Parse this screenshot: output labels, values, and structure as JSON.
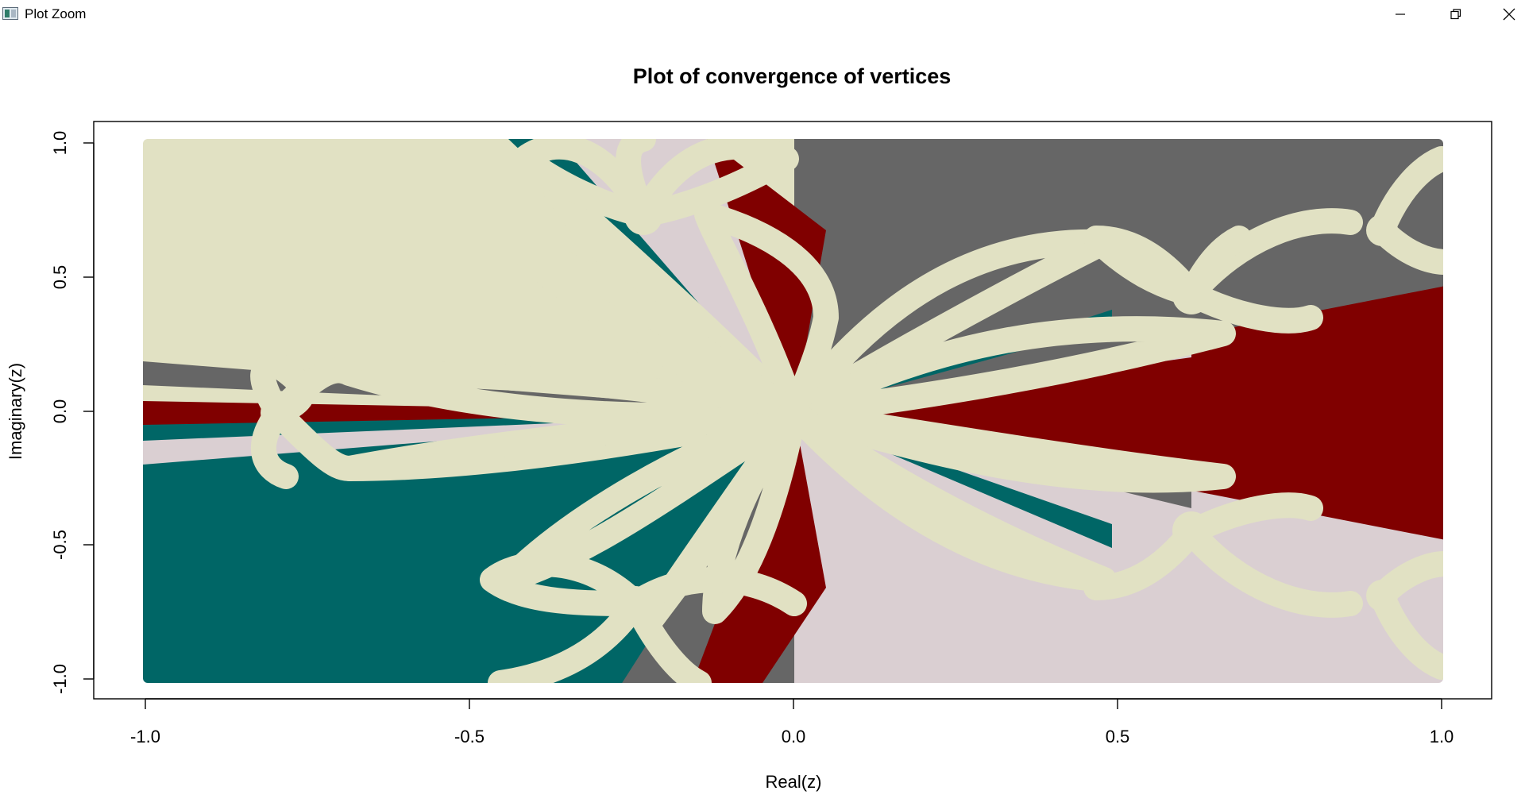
{
  "window": {
    "title": "Plot Zoom",
    "icons": [
      "app-icon",
      "minimize-icon",
      "restore-icon",
      "close-icon"
    ]
  },
  "chart_data": {
    "type": "heatmap",
    "title": "Plot of convergence of vertices",
    "xlabel": "Real(z)",
    "ylabel": "Imaginary(z)",
    "xlim": [
      -1.0,
      1.0
    ],
    "ylim": [
      -1.0,
      1.0
    ],
    "x_ticks": [
      "-1.0",
      "-0.5",
      "0.0",
      "0.5",
      "1.0"
    ],
    "y_ticks": [
      "-1.0",
      "-0.5",
      "0.0",
      "0.5",
      "1.0"
    ],
    "grid": false,
    "legend": "none",
    "colors": {
      "cream": "#e1e1c3",
      "teal": "#006666",
      "darkred": "#800000",
      "gray": "#666666",
      "lightpink": "#dacfd2",
      "background": "#ffffff"
    }
  }
}
